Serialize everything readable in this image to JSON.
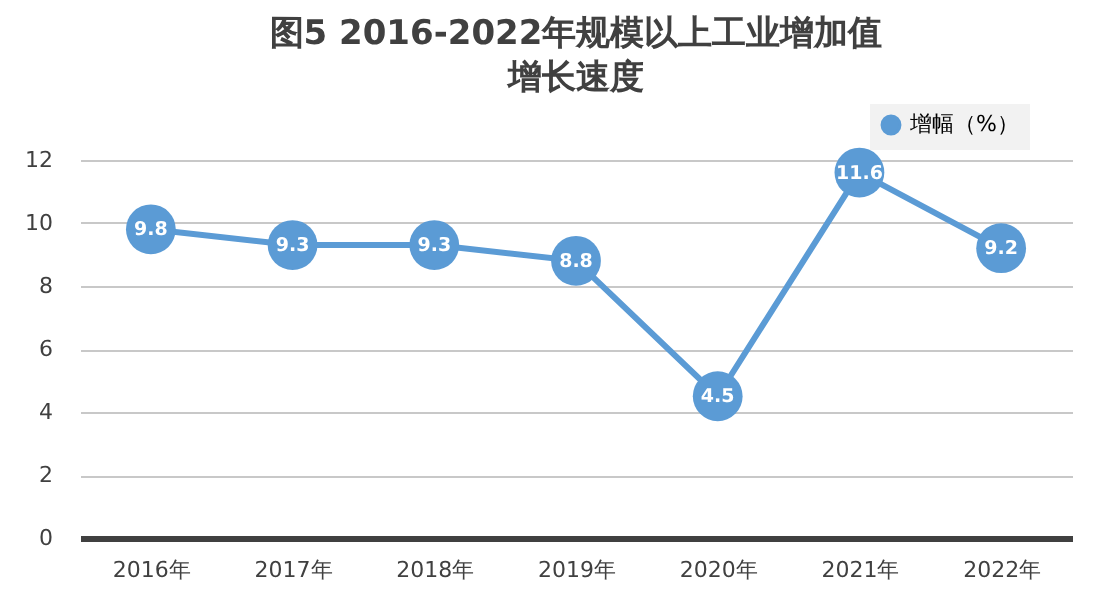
{
  "chart_data": {
    "type": "line",
    "title": "图5 2016-2022年规模以上工业增加值增长速度",
    "categories": [
      "2016年",
      "2017年",
      "2018年",
      "2019年",
      "2020年",
      "2021年",
      "2022年"
    ],
    "series": [
      {
        "name": "增幅（%）",
        "color": "#5b9bd5",
        "values": [
          9.8,
          9.3,
          9.3,
          8.8,
          4.5,
          11.6,
          9.2
        ]
      }
    ],
    "ylim": [
      0,
      12
    ],
    "yticks": [
      0,
      2,
      4,
      6,
      8,
      10,
      12
    ],
    "grid": "y",
    "legend": "top right",
    "marker": "circle",
    "data_labels": true
  }
}
